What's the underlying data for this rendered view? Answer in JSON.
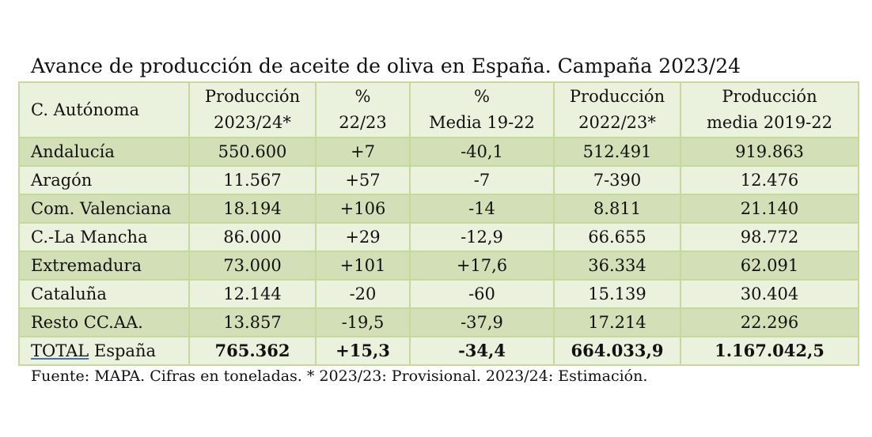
{
  "title": "Avance de producción de aceite de oliva en España. Campaña 2023/24",
  "headers": [
    {
      "line1": "C. Autónoma",
      "line2": ""
    },
    {
      "line1": "Producción",
      "line2": "2023/24*"
    },
    {
      "line1": "%",
      "line2": "22/23"
    },
    {
      "line1": "%",
      "line2": "Media 19-22"
    },
    {
      "line1": "Producción",
      "line2": "2022/23*"
    },
    {
      "line1": "Producción",
      "line2": "media 2019-22"
    }
  ],
  "rows": [
    {
      "region": "Andalucía",
      "prod_2324": "550.600",
      "pct_2223": "+7",
      "pct_media": "-40,1",
      "prod_2223": "512.491",
      "media_1922": "919.863"
    },
    {
      "region": "Aragón",
      "prod_2324": "11.567",
      "pct_2223": "+57",
      "pct_media": "-7",
      "prod_2223": "7-390",
      "media_1922": "12.476"
    },
    {
      "region": "Com. Valenciana",
      "prod_2324": "18.194",
      "pct_2223": "+106",
      "pct_media": "-14",
      "prod_2223": "8.811",
      "media_1922": "21.140"
    },
    {
      "region": "C.-La Mancha",
      "prod_2324": "86.000",
      "pct_2223": "+29",
      "pct_media": "-12,9",
      "prod_2223": "66.655",
      "media_1922": "98.772"
    },
    {
      "region": "Extremadura",
      "prod_2324": "73.000",
      "pct_2223": "+101",
      "pct_media": "+17,6",
      "prod_2223": "36.334",
      "media_1922": "62.091"
    },
    {
      "region": "Cataluña",
      "prod_2324": "12.144",
      "pct_2223": "-20",
      "pct_media": "-60",
      "prod_2223": "15.139",
      "media_1922": "30.404"
    },
    {
      "region": "Resto CC.AA.",
      "prod_2324": "13.857",
      "pct_2223": "-19,5",
      "pct_media": "-37,9",
      "prod_2223": "17.214",
      "media_1922": "22.296"
    }
  ],
  "total": {
    "label_word": "TOTAL",
    "label_rest": " España",
    "prod_2324": "765.362",
    "pct_2223": "+15,3",
    "pct_media": "-34,4",
    "prod_2223": "664.033,9",
    "media_1922": "1.167.042,5"
  },
  "footnote": "Fuente: MAPA. Cifras en toneladas. * 2023/23: Provisional. 2023/24: Estimación.",
  "colors": {
    "dark_row": "#d3e0b7",
    "light_row": "#eaf1dd",
    "border": "#c4d99a"
  }
}
